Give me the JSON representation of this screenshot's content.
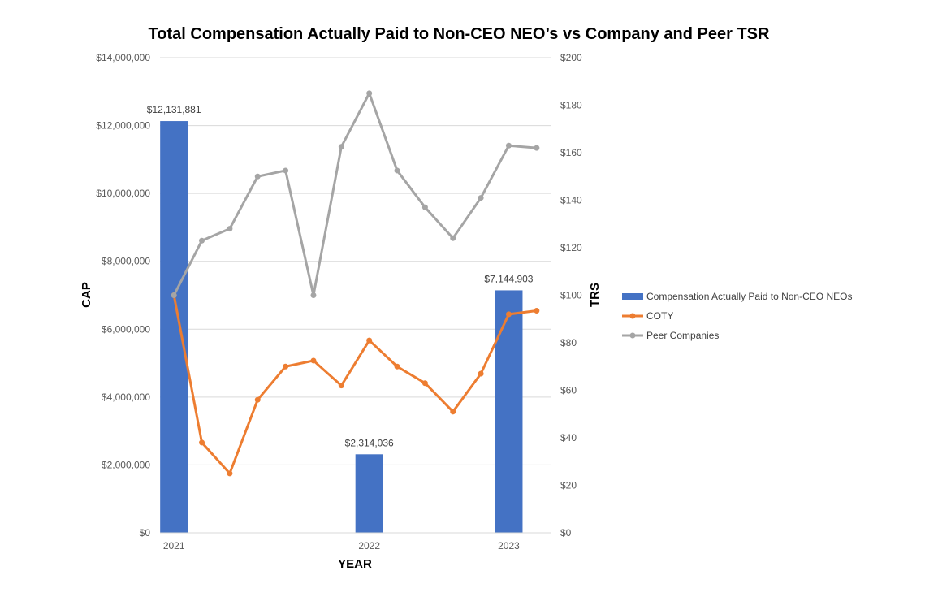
{
  "chart_data": {
    "type": "bar+line",
    "title": "Total Compensation Actually Paid to Non-CEO NEO’s vs Company and Peer TSR",
    "xlabel": "YEAR",
    "ylabel": "CAP",
    "y2label": "TRS",
    "ylim": [
      0,
      14000000
    ],
    "y2lim": [
      0,
      200
    ],
    "y_ticks": [
      0,
      2000000,
      4000000,
      6000000,
      8000000,
      10000000,
      12000000,
      14000000
    ],
    "y_tick_labels": [
      "$0",
      "$2,000,000",
      "$4,000,000",
      "$6,000,000",
      "$8,000,000",
      "$10,000,000",
      "$12,000,000",
      "$14,000,000"
    ],
    "y2_ticks": [
      0,
      20,
      40,
      60,
      80,
      100,
      120,
      140,
      160,
      180,
      200
    ],
    "y2_tick_labels": [
      "$0",
      "$20",
      "$40",
      "$60",
      "$80",
      "$100",
      "$120",
      "$140",
      "$160",
      "$180",
      "$200"
    ],
    "num_periods": 14,
    "x_tick_labels": [
      {
        "index": 0,
        "label": "2021"
      },
      {
        "index": 7,
        "label": "2022"
      },
      {
        "index": 12,
        "label": "2023"
      }
    ],
    "bars": {
      "name": "Compensation Actually Paid to Non-CEO NEOs",
      "color": "#4472C4",
      "points": [
        {
          "index": 0,
          "value": 12131881,
          "label": "$12,131,881"
        },
        {
          "index": 7,
          "value": 2314036,
          "label": "$2,314,036"
        },
        {
          "index": 12,
          "value": 7144903,
          "label": "$7,144,903"
        }
      ]
    },
    "series": [
      {
        "name": "COTY",
        "color": "#ED7D31",
        "values": [
          100,
          38,
          25,
          56,
          70,
          72.5,
          62,
          81,
          70,
          63,
          51,
          67,
          92,
          93.5
        ]
      },
      {
        "name": "Peer Companies",
        "color": "#A5A5A5",
        "values": [
          100,
          123,
          128,
          150,
          152.5,
          100,
          162.5,
          185,
          152.5,
          137,
          124,
          141,
          163,
          162
        ]
      }
    ],
    "legend_position": "right"
  }
}
